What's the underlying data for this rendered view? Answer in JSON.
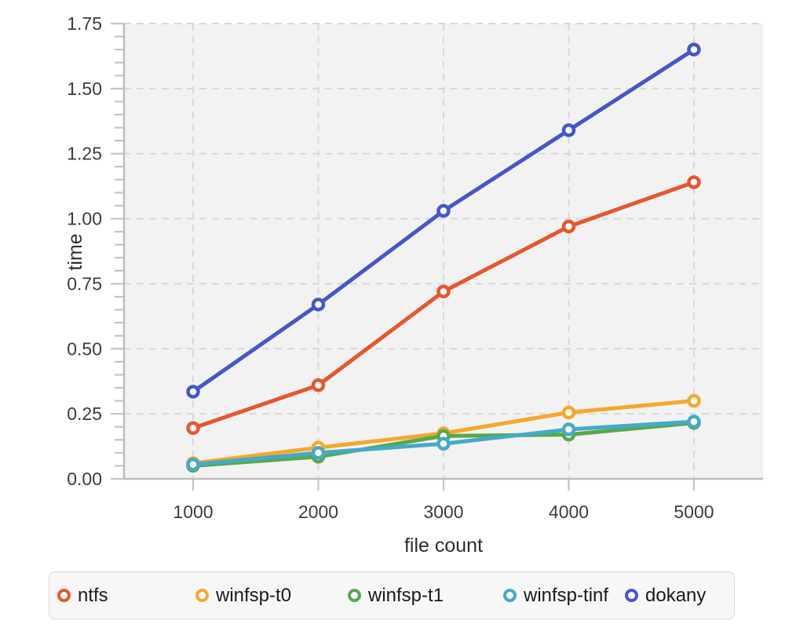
{
  "chart_data": {
    "type": "line",
    "title": "",
    "xlabel": "file count",
    "ylabel": "time",
    "x": [
      1000,
      2000,
      3000,
      4000,
      5000
    ],
    "x_tick_labels": [
      "1000",
      "2000",
      "3000",
      "4000",
      "5000"
    ],
    "y_ticks": [
      0.0,
      0.25,
      0.5,
      0.75,
      1.0,
      1.25,
      1.5,
      1.75
    ],
    "y_tick_labels": [
      "0.00",
      "0.25",
      "0.50",
      "0.75",
      "1.00",
      "1.25",
      "1.50",
      "1.75"
    ],
    "ylim": [
      0,
      1.75
    ],
    "y_minor_step": 0.05,
    "grid": "dashed",
    "legend_position": "bottom",
    "marker_style": "open-circle",
    "series": [
      {
        "name": "ntfs",
        "color": "#E8562E",
        "values": [
          0.195,
          0.36,
          0.72,
          0.97,
          1.14
        ]
      },
      {
        "name": "winfsp-t0",
        "color": "#F6A72B",
        "values": [
          0.06,
          0.12,
          0.175,
          0.255,
          0.3
        ]
      },
      {
        "name": "winfsp-t1",
        "color": "#57A84E",
        "values": [
          0.05,
          0.085,
          0.165,
          0.17,
          0.215
        ]
      },
      {
        "name": "winfsp-tinf",
        "color": "#44AAC8",
        "values": [
          0.055,
          0.1,
          0.135,
          0.19,
          0.22
        ]
      },
      {
        "name": "dokany",
        "color": "#4656CB",
        "values": [
          0.335,
          0.67,
          1.03,
          1.34,
          1.65
        ]
      }
    ]
  },
  "colors": {
    "plot_background": "#F2F2F2",
    "grid_line": "#D8D8D8",
    "axis_domain": "#BDBDBD",
    "tick_mark": "#C4C4C4",
    "tick_label": "#3D3D3D",
    "axis_title": "#2E2E2E",
    "legend_border": "#D8D8D8",
    "legend_background": "#F7F7F7",
    "legend_text": "#1A1A1A"
  }
}
